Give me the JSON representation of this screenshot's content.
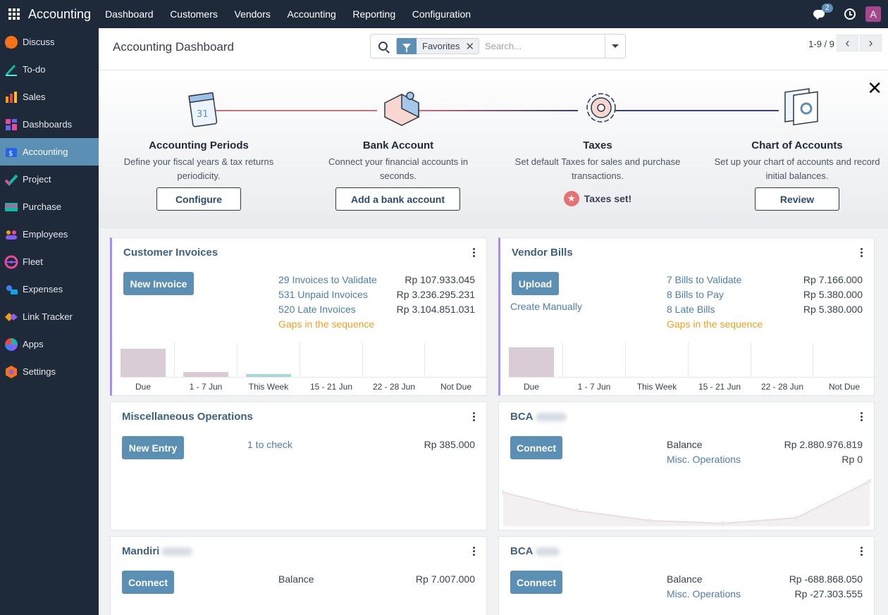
{
  "topbar": {
    "app_name": "Accounting",
    "menu": [
      "Dashboard",
      "Customers",
      "Vendors",
      "Accounting",
      "Reporting",
      "Configuration"
    ],
    "chat_count": "2",
    "avatar_letter": "A"
  },
  "sidebar": {
    "items": [
      {
        "label": "Discuss",
        "icon": "discuss-icon"
      },
      {
        "label": "To-do",
        "icon": "todo-icon"
      },
      {
        "label": "Sales",
        "icon": "sales-icon"
      },
      {
        "label": "Dashboards",
        "icon": "dashboards-icon"
      },
      {
        "label": "Accounting",
        "icon": "accounting-icon",
        "active": true
      },
      {
        "label": "Project",
        "icon": "project-icon"
      },
      {
        "label": "Purchase",
        "icon": "purchase-icon"
      },
      {
        "label": "Employees",
        "icon": "employees-icon"
      },
      {
        "label": "Fleet",
        "icon": "fleet-icon"
      },
      {
        "label": "Expenses",
        "icon": "expenses-icon"
      },
      {
        "label": "Link Tracker",
        "icon": "link-tracker-icon"
      },
      {
        "label": "Apps",
        "icon": "apps-icon"
      },
      {
        "label": "Settings",
        "icon": "settings-icon"
      }
    ]
  },
  "control": {
    "title": "Accounting Dashboard",
    "facet": "Favorites",
    "search_placeholder": "Search...",
    "pager": "1-9 / 9"
  },
  "onboarding": {
    "steps": [
      {
        "title": "Accounting Periods",
        "desc": "Define your fiscal years & tax returns periodicity.",
        "button": "Configure"
      },
      {
        "title": "Bank Account",
        "desc": "Connect your financial accounts in seconds.",
        "button": "Add a bank account"
      },
      {
        "title": "Taxes",
        "desc": "Set default Taxes for sales and purchase transactions.",
        "done": "Taxes set!"
      },
      {
        "title": "Chart of Accounts",
        "desc": "Set up your chart of accounts and record initial balances.",
        "button": "Review"
      }
    ],
    "calendar_day": "31"
  },
  "cards": {
    "customer_invoices": {
      "title": "Customer Invoices",
      "button": "New Invoice",
      "lines": [
        {
          "label": "29 Invoices to Validate",
          "amount": "Rp 107.933.045"
        },
        {
          "label": "531 Unpaid Invoices",
          "amount": "Rp 3.236.295.231"
        },
        {
          "label": "520 Late Invoices",
          "amount": "Rp 3.104.851.031"
        }
      ],
      "gaps": "Gaps in the sequence",
      "graph_labels": [
        "Due",
        "1 - 7 Jun",
        "This Week",
        "15 - 21 Jun",
        "22 - 28 Jun",
        "Not Due"
      ]
    },
    "vendor_bills": {
      "title": "Vendor Bills",
      "button": "Upload",
      "create_manually": "Create Manually",
      "lines": [
        {
          "label": "7 Bills to Validate",
          "amount": "Rp 7.166.000"
        },
        {
          "label": "8 Bills to Pay",
          "amount": "Rp 5.380.000"
        },
        {
          "label": "8 Late Bills",
          "amount": "Rp 5.380.000"
        }
      ],
      "gaps": "Gaps in the sequence",
      "graph_labels": [
        "Due",
        "1 - 7 Jun",
        "This Week",
        "15 - 21 Jun",
        "22 - 28 Jun",
        "Not Due"
      ]
    },
    "misc": {
      "title": "Miscellaneous Operations",
      "button": "New Entry",
      "check": "1 to check",
      "amount": "Rp 385.000"
    },
    "bca1": {
      "title": "BCA",
      "button": "Connect",
      "balance_label": "Balance",
      "balance": "Rp 2.880.976.819",
      "misc_label": "Misc. Operations",
      "misc": "Rp 0"
    },
    "mandiri": {
      "title": "Mandiri",
      "button": "Connect",
      "balance_label": "Balance",
      "balance": "Rp 7.007.000"
    },
    "bca2": {
      "title": "BCA",
      "button": "Connect",
      "balance_label": "Balance",
      "balance": "Rp -688.868.050",
      "misc_label": "Misc. Operations",
      "misc": "Rp -27.303.555"
    }
  },
  "colors": {
    "topbar": "#1e2a3a",
    "accent": "#5b8fb3",
    "link": "#4d7ea8",
    "warning": "#f0a020",
    "bar_past": "#d9ccd6",
    "bar_week": "#a7d7dc",
    "card_border_accent": "#a78bfa"
  }
}
